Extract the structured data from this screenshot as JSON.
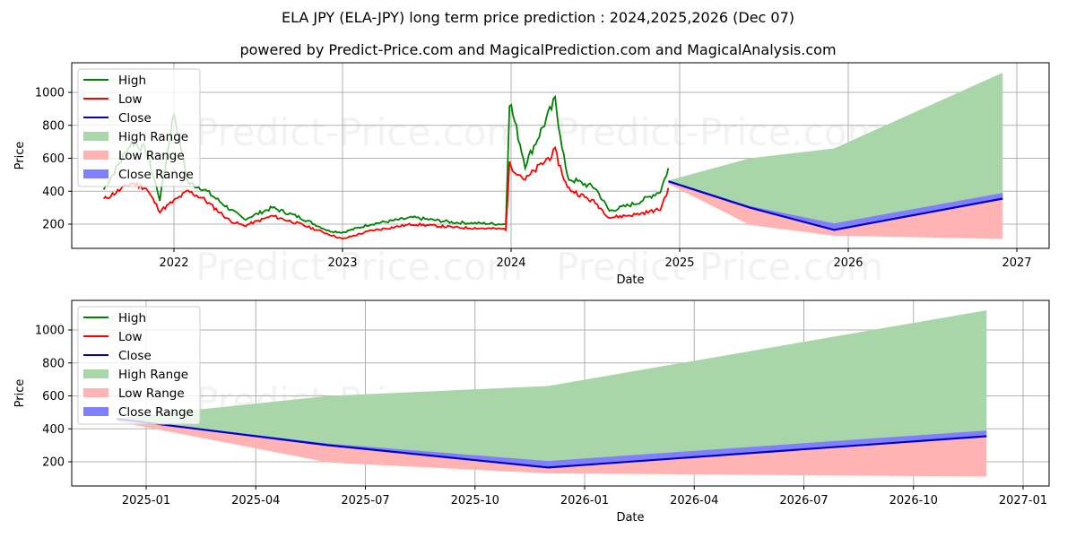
{
  "header": {
    "title": "ELA JPY (ELA-JPY) long term price prediction : 2024,2025,2026 (Dec 07)",
    "subtitle": "powered by Predict-Price.com and MagicalPrediction.com and MagicalAnalysis.com"
  },
  "watermark": "Predict-Price.com",
  "colors": {
    "high": "#008000",
    "low": "#ff0000",
    "close": "#0000cc",
    "high_range": "#a9d6a9",
    "low_range": "#ffb3b3",
    "close_range": "#8080ff"
  },
  "legend": [
    "High",
    "Low",
    "Close",
    "High Range",
    "Low Range",
    "Close Range"
  ],
  "chart_data": [
    {
      "type": "line",
      "title": "Long term history + forecast",
      "xlabel": "Date",
      "ylabel": "Price",
      "xticks": [
        "2022",
        "2023",
        "2024",
        "2025",
        "2026",
        "2027"
      ],
      "yticks": [
        200,
        400,
        600,
        800,
        1000
      ],
      "ylim": [
        53,
        1180
      ],
      "grid": true,
      "legend_position": "upper left",
      "history_approx": {
        "dates": [
          "2021-08",
          "2021-10",
          "2021-11",
          "2021-12",
          "2022-01",
          "2022-02",
          "2022-03",
          "2022-05",
          "2022-06",
          "2022-08",
          "2022-10",
          "2022-12",
          "2023-01",
          "2023-03",
          "2023-06",
          "2023-09",
          "2023-12-20",
          "2023-12-28",
          "2024-02",
          "2024-04-05",
          "2024-05",
          "2024-07",
          "2024-08",
          "2024-10",
          "2024-11-20",
          "2024-12-07"
        ],
        "high": [
          410,
          700,
          650,
          350,
          880,
          450,
          420,
          290,
          230,
          300,
          240,
          160,
          150,
          200,
          240,
          210,
          200,
          950,
          560,
          950,
          480,
          420,
          280,
          330,
          400,
          540
        ],
        "low": [
          350,
          450,
          420,
          280,
          340,
          400,
          360,
          220,
          190,
          250,
          200,
          140,
          110,
          160,
          200,
          180,
          170,
          560,
          470,
          640,
          420,
          330,
          240,
          260,
          290,
          420
        ]
      },
      "forecast": {
        "dates": [
          "2024-12-07",
          "2025-06",
          "2025-12",
          "2026-12"
        ],
        "high_range_upper": [
          465,
          600,
          660,
          1120
        ],
        "low_range_lower": [
          445,
          195,
          130,
          110
        ],
        "close": [
          460,
          300,
          165,
          355
        ],
        "close_range_upper": [
          465,
          310,
          205,
          390
        ]
      }
    },
    {
      "type": "area",
      "title": "Forecast detail",
      "xlabel": "Date",
      "ylabel": "Price",
      "xticks": [
        "2025-01",
        "2025-04",
        "2025-07",
        "2025-10",
        "2026-01",
        "2026-04",
        "2026-07",
        "2026-10",
        "2027-01"
      ],
      "yticks": [
        200,
        400,
        600,
        800,
        1000
      ],
      "ylim": [
        53,
        1180
      ],
      "grid": true,
      "legend_position": "upper left",
      "forecast": {
        "dates": [
          "2024-12-07",
          "2025-06",
          "2025-12",
          "2026-12"
        ],
        "high_range_upper": [
          465,
          600,
          660,
          1120
        ],
        "low_range_lower": [
          445,
          195,
          130,
          110
        ],
        "close": [
          460,
          300,
          165,
          355
        ],
        "close_range_upper": [
          465,
          310,
          205,
          390
        ]
      }
    }
  ]
}
